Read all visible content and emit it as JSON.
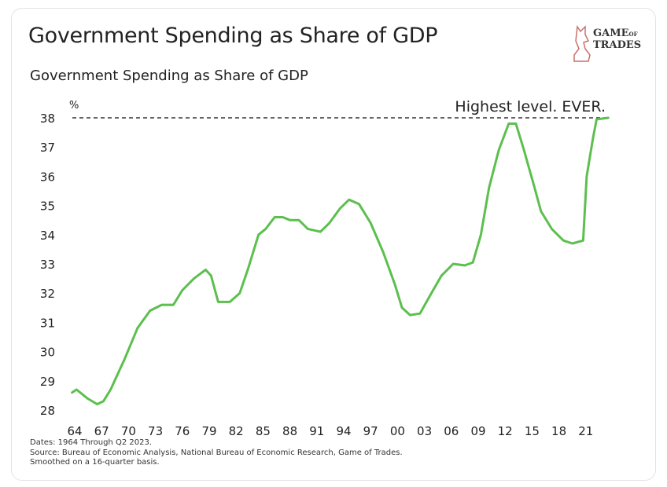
{
  "header": {
    "title": "Government Spending as Share of GDP",
    "brand": "GAME OF TRADES"
  },
  "chart_data": {
    "type": "line",
    "title": "Government Spending as Share of GDP",
    "ylabel": "%",
    "ylim": [
      28,
      38
    ],
    "xlim": [
      1964,
      2023.5
    ],
    "yticks": [
      28,
      29,
      30,
      31,
      32,
      33,
      34,
      35,
      36,
      37,
      38
    ],
    "xtick_labels": [
      "64",
      "67",
      "70",
      "73",
      "76",
      "79",
      "82",
      "85",
      "88",
      "91",
      "94",
      "97",
      "00",
      "03",
      "06",
      "09",
      "12",
      "15",
      "18",
      "21"
    ],
    "xtick_years": [
      1964,
      1967,
      1970,
      1973,
      1976,
      1979,
      1982,
      1985,
      1988,
      1991,
      1994,
      1997,
      2000,
      2003,
      2006,
      2009,
      2012,
      2015,
      2018,
      2021
    ],
    "annotation": "Highest level. EVER.",
    "reference_line": {
      "y": 38,
      "style": "dashed",
      "color": "#333333"
    },
    "line_color": "#5cbf4e",
    "grid": false,
    "x": [
      1963.7,
      1964.2,
      1965.4,
      1966.5,
      1967.2,
      1968,
      1969.5,
      1971,
      1972.4,
      1973.7,
      1975,
      1976,
      1977.3,
      1978.6,
      1979.2,
      1980,
      1981.3,
      1982.4,
      1983.3,
      1984.5,
      1985.3,
      1986.3,
      1987.2,
      1988,
      1989,
      1990,
      1991.4,
      1992.4,
      1993.6,
      1994.6,
      1995.7,
      1997,
      1998.4,
      1999.7,
      2000.5,
      2001.4,
      2002.5,
      2003.6,
      2004.9,
      2006.2,
      2007.5,
      2008.4,
      2009.3,
      2010.2,
      2011.3,
      2012.4,
      2013.2,
      2014.1,
      2015.2,
      2016,
      2017.2,
      2018.5,
      2019.5,
      2020.7,
      2021.1,
      2021.8,
      2022.2,
      2023.5
    ],
    "y": [
      28.6,
      28.7,
      28.4,
      28.2,
      28.3,
      28.7,
      29.7,
      30.8,
      31.4,
      31.6,
      31.6,
      32.1,
      32.5,
      32.8,
      32.6,
      31.7,
      31.7,
      32.0,
      32.8,
      34.0,
      34.2,
      34.6,
      34.6,
      34.5,
      34.5,
      34.2,
      34.1,
      34.4,
      34.9,
      35.2,
      35.05,
      34.4,
      33.4,
      32.3,
      31.5,
      31.25,
      31.3,
      31.9,
      32.6,
      33.0,
      32.95,
      33.05,
      34.0,
      35.6,
      36.9,
      37.8,
      37.8,
      36.9,
      35.7,
      34.8,
      34.2,
      33.8,
      33.7,
      33.8,
      36.0,
      37.3,
      37.95,
      38.0
    ]
  },
  "footnotes": [
    "Dates: 1964 Through Q2 2023.",
    "Source: Bureau of Economic Analysis, National Bureau of Economic Research, Game of Trades.",
    "Smoothed on a 16-quarter basis."
  ]
}
